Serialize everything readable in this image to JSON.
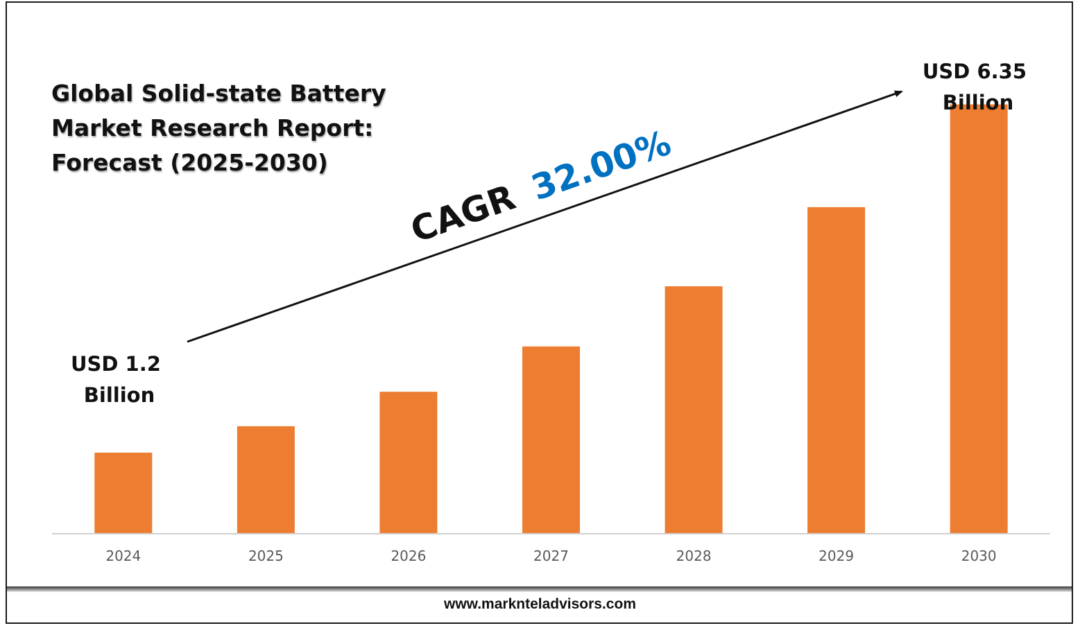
{
  "chart_data": {
    "type": "bar",
    "title": "Global Solid-state Battery\nMarket Research Report:\nForecast (2025-2030)",
    "categories": [
      "2024",
      "2025",
      "2026",
      "2027",
      "2028",
      "2029",
      "2030"
    ],
    "values": [
      1.2,
      1.59,
      2.1,
      2.77,
      3.66,
      4.83,
      6.35
    ],
    "ylim": [
      0,
      6.9
    ],
    "grid": false,
    "bar_color": "#ED7D31",
    "annotations": {
      "start_label": [
        "USD 1.2",
        "Billion"
      ],
      "end_label": [
        "USD 6.35",
        "Billion"
      ],
      "cagr_prefix": "CAGR",
      "cagr_value": "32.00%",
      "cagr_value_color": "#0070C0"
    }
  },
  "footer": {
    "website": "www.marknteladvisors.com"
  }
}
